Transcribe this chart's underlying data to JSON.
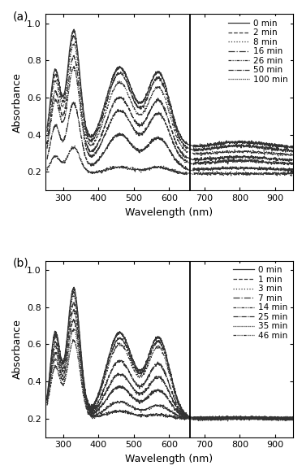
{
  "panel_a": {
    "label": "a",
    "vline": 660,
    "ylim": [
      0.1,
      1.05
    ],
    "yticks": [
      0.2,
      0.4,
      0.6,
      0.8,
      1.0
    ],
    "xlim": [
      250,
      950
    ],
    "xticks": [
      300,
      400,
      500,
      600,
      700,
      800,
      900
    ],
    "legend_labels": [
      "0 min",
      "2 min",
      "8 min",
      "16 min",
      "26 min",
      "50 min",
      "100 min"
    ],
    "curves": [
      {
        "t": 0,
        "p1": 0.96,
        "p2": 0.76,
        "p3": 0.73,
        "p4": 0.36,
        "base": 0.33
      },
      {
        "t": 2,
        "p1": 0.93,
        "p2": 0.73,
        "p3": 0.7,
        "p4": 0.34,
        "base": 0.31
      },
      {
        "t": 8,
        "p1": 0.89,
        "p2": 0.68,
        "p3": 0.65,
        "p4": 0.31,
        "base": 0.29
      },
      {
        "t": 16,
        "p1": 0.82,
        "p2": 0.6,
        "p3": 0.58,
        "p4": 0.28,
        "base": 0.26
      },
      {
        "t": 26,
        "p1": 0.76,
        "p2": 0.53,
        "p3": 0.51,
        "p4": 0.26,
        "base": 0.24
      },
      {
        "t": 50,
        "p1": 0.57,
        "p2": 0.4,
        "p3": 0.38,
        "p4": 0.22,
        "base": 0.21
      },
      {
        "t": 100,
        "p1": 0.33,
        "p2": 0.225,
        "p3": 0.225,
        "p4": 0.19,
        "base": 0.19
      }
    ]
  },
  "panel_b": {
    "label": "b",
    "vline": 660,
    "ylim": [
      0.1,
      1.05
    ],
    "yticks": [
      0.2,
      0.4,
      0.6,
      0.8,
      1.0
    ],
    "xlim": [
      250,
      950
    ],
    "xticks": [
      300,
      400,
      500,
      600,
      700,
      800,
      900
    ],
    "legend_labels": [
      "0 min",
      "1 min",
      "3 min",
      "7 min",
      "14 min",
      "25 min",
      "35 min",
      "46 min"
    ],
    "curves": [
      {
        "t": 0,
        "p1": 0.9,
        "p2": 0.66,
        "p3": 0.63,
        "p4": 0.21,
        "base": 0.2
      },
      {
        "t": 1,
        "p1": 0.88,
        "p2": 0.63,
        "p3": 0.61,
        "p4": 0.21,
        "base": 0.2
      },
      {
        "t": 3,
        "p1": 0.86,
        "p2": 0.6,
        "p3": 0.58,
        "p4": 0.21,
        "base": 0.2
      },
      {
        "t": 7,
        "p1": 0.82,
        "p2": 0.51,
        "p3": 0.49,
        "p4": 0.21,
        "base": 0.2
      },
      {
        "t": 14,
        "p1": 0.78,
        "p2": 0.44,
        "p3": 0.42,
        "p4": 0.21,
        "base": 0.2
      },
      {
        "t": 25,
        "p1": 0.73,
        "p2": 0.37,
        "p3": 0.35,
        "p4": 0.21,
        "base": 0.2
      },
      {
        "t": 35,
        "p1": 0.68,
        "p2": 0.29,
        "p3": 0.27,
        "p4": 0.21,
        "base": 0.2
      },
      {
        "t": 46,
        "p1": 0.62,
        "p2": 0.24,
        "p3": 0.22,
        "p4": 0.21,
        "base": 0.2
      }
    ]
  },
  "ylabel": "Absorbance",
  "xlabel": "Wavelength (nm)",
  "linecolor": "#333333",
  "fontsize": 9,
  "legend_fontsize": 7.5
}
